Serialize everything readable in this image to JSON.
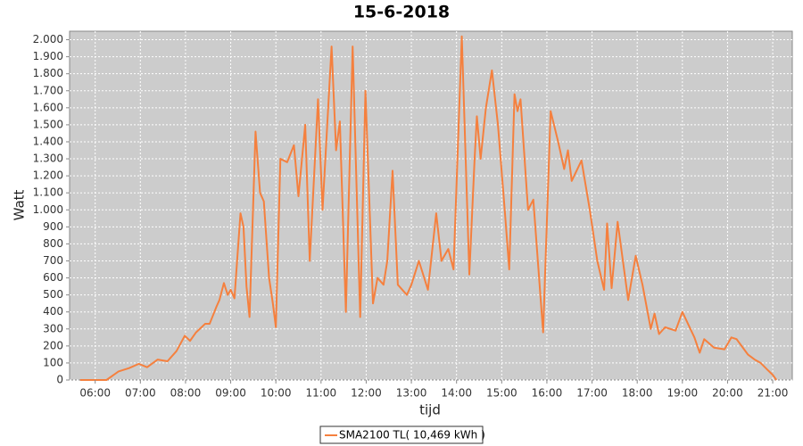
{
  "chart_data": {
    "type": "line",
    "title": "15-6-2018",
    "xlabel": "tijd",
    "ylabel": "Watt",
    "x": [
      "05:40",
      "06:00",
      "06:15",
      "06:31",
      "06:45",
      "06:58",
      "07:09",
      "07:23",
      "07:36",
      "07:48",
      "07:59",
      "08:06",
      "08:14",
      "08:26",
      "08:32",
      "08:41",
      "08:45",
      "08:51",
      "08:56",
      "09:00",
      "09:05",
      "09:13",
      "09:17",
      "09:21",
      "09:25",
      "09:33",
      "09:39",
      "09:44",
      "09:51",
      "09:56",
      "10:00",
      "10:06",
      "10:15",
      "10:24",
      "10:30",
      "10:39",
      "10:45",
      "10:56",
      "11:02",
      "11:14",
      "11:20",
      "11:25",
      "11:33",
      "11:42",
      "11:52",
      "11:59",
      "12:09",
      "12:15",
      "12:23",
      "12:28",
      "12:35",
      "12:42",
      "12:54",
      "13:00",
      "13:10",
      "13:22",
      "13:33",
      "13:40",
      "13:49",
      "13:56",
      "14:07",
      "14:17",
      "14:24",
      "14:27",
      "14:32",
      "14:39",
      "14:47",
      "14:55",
      "15:04",
      "15:10",
      "15:17",
      "15:21",
      "15:25",
      "15:35",
      "15:42",
      "15:55",
      "16:05",
      "16:15",
      "16:23",
      "16:28",
      "16:33",
      "16:46",
      "16:57",
      "17:07",
      "17:16",
      "17:20",
      "17:26",
      "17:34",
      "17:48",
      "17:58",
      "18:07",
      "18:18",
      "18:23",
      "18:29",
      "18:37",
      "18:51",
      "19:00",
      "19:16",
      "19:23",
      "19:29",
      "19:42",
      "19:56",
      "20:05",
      "20:12",
      "20:27",
      "20:36",
      "20:44",
      "20:53",
      "21:00",
      "21:05"
    ],
    "series": [
      {
        "name": "SMA2100 TL( 10,469 kWh )",
        "color": "#f5803e",
        "values": [
          0,
          0,
          0,
          50,
          70,
          95,
          75,
          120,
          110,
          170,
          260,
          230,
          280,
          330,
          330,
          430,
          470,
          570,
          500,
          530,
          480,
          980,
          900,
          550,
          370,
          1460,
          1100,
          1050,
          600,
          450,
          310,
          1300,
          1280,
          1380,
          1080,
          1500,
          700,
          1650,
          1000,
          1960,
          1350,
          1520,
          400,
          1960,
          370,
          1700,
          450,
          600,
          560,
          700,
          1230,
          560,
          500,
          560,
          700,
          530,
          980,
          700,
          770,
          650,
          2020,
          620,
          1300,
          1550,
          1300,
          1600,
          1820,
          1500,
          1000,
          650,
          1680,
          1580,
          1650,
          1000,
          1060,
          280,
          1580,
          1400,
          1240,
          1350,
          1170,
          1290,
          1000,
          700,
          530,
          920,
          540,
          930,
          470,
          730,
          560,
          300,
          390,
          270,
          310,
          290,
          400,
          250,
          160,
          240,
          190,
          180,
          250,
          240,
          150,
          120,
          100,
          60,
          30,
          0
        ]
      }
    ],
    "xlim": [
      "05:26",
      "21:26"
    ],
    "xticks": [
      "06:00",
      "07:00",
      "08:00",
      "09:00",
      "10:00",
      "11:00",
      "12:00",
      "13:00",
      "14:00",
      "15:00",
      "16:00",
      "17:00",
      "18:00",
      "19:00",
      "20:00",
      "21:00"
    ],
    "ylim": [
      0,
      2050
    ],
    "yticks": [
      0,
      100,
      200,
      300,
      400,
      500,
      600,
      700,
      800,
      900,
      {
        "value": 1000,
        "label": "1.000"
      },
      {
        "value": 1100,
        "label": "1.100"
      },
      {
        "value": 1200,
        "label": "1.200"
      },
      {
        "value": 1300,
        "label": "1.300"
      },
      {
        "value": 1400,
        "label": "1.400"
      },
      {
        "value": 1500,
        "label": "1.500"
      },
      {
        "value": 1600,
        "label": "1.600"
      },
      {
        "value": 1700,
        "label": "1.700"
      },
      {
        "value": 1800,
        "label": "1.800"
      },
      {
        "value": 1900,
        "label": "1.900"
      },
      {
        "value": 2000,
        "label": "2.000"
      }
    ],
    "grid": true
  }
}
